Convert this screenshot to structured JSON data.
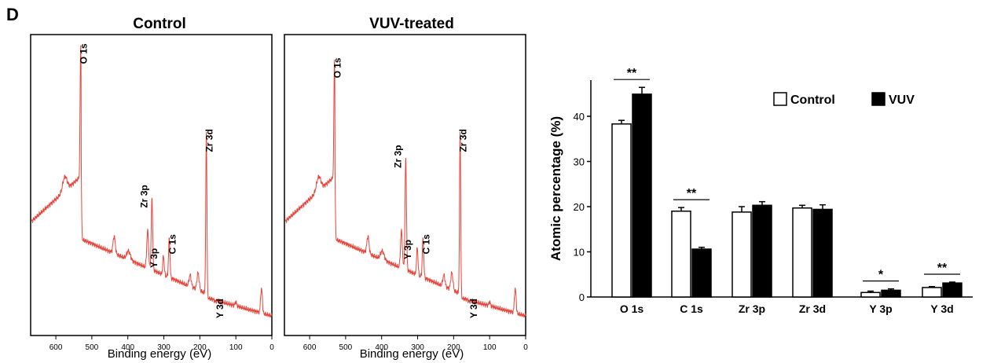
{
  "panel_label": "D",
  "chart_data": [
    {
      "type": "line",
      "title": "Control",
      "xlabel": "Binding energy (eV)",
      "ylabel": "",
      "xlim": [
        670,
        0
      ],
      "x_ticks": [
        "600",
        "500",
        "400",
        "300",
        "200",
        "100",
        "0"
      ],
      "x_tick_values": [
        600,
        500,
        400,
        300,
        200,
        100,
        0
      ],
      "color": "#e8443a",
      "peaks": [
        {
          "label": "O 1s",
          "x": 531,
          "y": 0.98
        },
        {
          "label": "Zr 3p",
          "x": 333,
          "y": 0.44
        },
        {
          "label": "C 1s",
          "x": 285,
          "y": 0.3
        },
        {
          "label": "Y 3p",
          "x": 301,
          "y": 0.24
        },
        {
          "label": "Zr 3d",
          "x": 182,
          "y": 0.68
        },
        {
          "label": "Y 3d",
          "x": 157,
          "y": 0.08
        }
      ]
    },
    {
      "type": "line",
      "title": "VUV-treated",
      "xlabel": "Binding energy (eV)",
      "ylabel": "",
      "xlim": [
        670,
        0
      ],
      "x_ticks": [
        "600",
        "500",
        "400",
        "300",
        "200",
        "100",
        "0"
      ],
      "x_tick_values": [
        600,
        500,
        400,
        300,
        200,
        100,
        0
      ],
      "color": "#e8443a",
      "peaks": [
        {
          "label": "O 1s",
          "x": 531,
          "y": 0.93
        },
        {
          "label": "Zr 3p",
          "x": 333,
          "y": 0.58
        },
        {
          "label": "Y 3p",
          "x": 301,
          "y": 0.27
        },
        {
          "label": "C 1s",
          "x": 285,
          "y": 0.3
        },
        {
          "label": "Zr 3d",
          "x": 182,
          "y": 0.68
        },
        {
          "label": "Y 3d",
          "x": 157,
          "y": 0.08
        }
      ]
    },
    {
      "type": "bar",
      "title": "",
      "xlabel": "",
      "ylabel": "Atomic percentage (%)",
      "ylim": [
        0,
        48
      ],
      "y_ticks": [
        0,
        10,
        20,
        30,
        40
      ],
      "categories": [
        "O 1s",
        "C 1s",
        "Zr 3p",
        "Zr 3d",
        "Y 3p",
        "Y 3d"
      ],
      "series": [
        {
          "name": "Control",
          "color": "#ffffff",
          "values": [
            38.3,
            19.0,
            18.8,
            19.7,
            1.0,
            2.1
          ],
          "errors": [
            0.8,
            0.8,
            1.2,
            0.6,
            0.3,
            0.2
          ]
        },
        {
          "name": "VUV",
          "color": "#000000",
          "values": [
            44.9,
            10.6,
            20.3,
            19.4,
            1.5,
            3.1
          ],
          "errors": [
            1.5,
            0.4,
            0.8,
            1.0,
            0.3,
            0.2
          ]
        }
      ],
      "significance": [
        "**",
        "**",
        "",
        "",
        "*",
        "**"
      ],
      "legend_position": "top-right"
    }
  ]
}
